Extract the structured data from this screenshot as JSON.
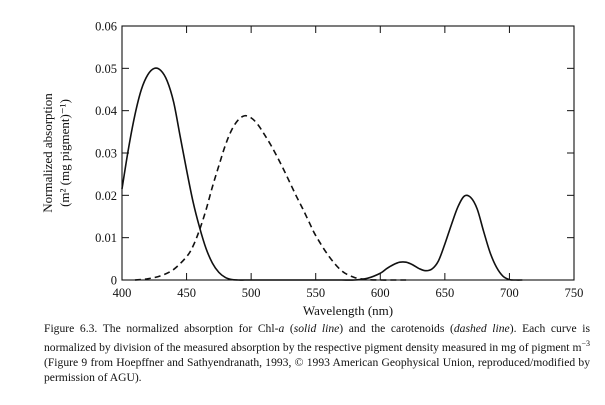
{
  "chart_data": {
    "type": "line",
    "xlabel": "Wavelength (nm)",
    "ylabel_line1": "Normalized absorption",
    "ylabel_line2": "(m² (mg pigment)⁻¹)",
    "xlim": [
      400,
      750
    ],
    "ylim": [
      0,
      0.06
    ],
    "x_ticks": [
      "400",
      "450",
      "500",
      "550",
      "600",
      "650",
      "700",
      "750"
    ],
    "y_ticks": [
      "0",
      "0.01",
      "0.02",
      "0.03",
      "0.04",
      "0.05",
      "0.06"
    ],
    "grid": false,
    "series": [
      {
        "style": "solid",
        "x": [
          400,
          405,
          410,
          415,
          420,
          425,
          430,
          435,
          440,
          445,
          450,
          455,
          460,
          465,
          470,
          475,
          480,
          485,
          490,
          495,
          500,
          510,
          520,
          530,
          540,
          550,
          560,
          570,
          580,
          590,
          600,
          605,
          610,
          615,
          620,
          625,
          630,
          635,
          640,
          645,
          650,
          655,
          660,
          665,
          670,
          675,
          680,
          685,
          690,
          695,
          700,
          705,
          710
        ],
        "y": [
          0.0215,
          0.031,
          0.039,
          0.045,
          0.0485,
          0.05,
          0.0495,
          0.047,
          0.042,
          0.034,
          0.026,
          0.0185,
          0.0125,
          0.0075,
          0.004,
          0.0018,
          0.0006,
          0.0001,
          0,
          0,
          0,
          0,
          0,
          0,
          0,
          0,
          0,
          0,
          0,
          0.0004,
          0.0016,
          0.0027,
          0.0036,
          0.0042,
          0.0042,
          0.0036,
          0.0027,
          0.0022,
          0.0026,
          0.0045,
          0.0085,
          0.013,
          0.0172,
          0.0198,
          0.0195,
          0.0168,
          0.0115,
          0.0065,
          0.003,
          0.0009,
          0.0001,
          0,
          0
        ]
      },
      {
        "style": "dashed",
        "x": [
          410,
          420,
          430,
          440,
          450,
          455,
          460,
          465,
          470,
          475,
          480,
          485,
          490,
          495,
          500,
          505,
          510,
          515,
          520,
          525,
          530,
          535,
          540,
          545,
          550,
          560,
          570,
          580,
          590,
          600,
          610,
          620
        ],
        "y": [
          0,
          0.0003,
          0.001,
          0.0025,
          0.0055,
          0.008,
          0.0118,
          0.0165,
          0.022,
          0.027,
          0.0318,
          0.0355,
          0.0378,
          0.0388,
          0.0383,
          0.0368,
          0.0345,
          0.032,
          0.0292,
          0.0262,
          0.023,
          0.0198,
          0.0168,
          0.0136,
          0.0105,
          0.0057,
          0.0022,
          0.0006,
          0.0001,
          0,
          0,
          0
        ]
      }
    ]
  },
  "caption": {
    "prefix": "Figure 6.3.  The normalized absorption for Chl-",
    "chl_a": "a",
    "solid_open": " (",
    "solid_line": "solid line",
    "mid": ") and the carotenoids (",
    "dashed_line": "dashed line",
    "suffix1": "). Each curve is normalized by division of the measured absorption by the respective pigment density measured in mg of pigment m",
    "exponent": "−3",
    "suffix2": " (Figure 9 from Hoepffner and Sathyendranath, 1993, © 1993 American Geophysical Union, reproduced/modified by permission of AGU)."
  }
}
